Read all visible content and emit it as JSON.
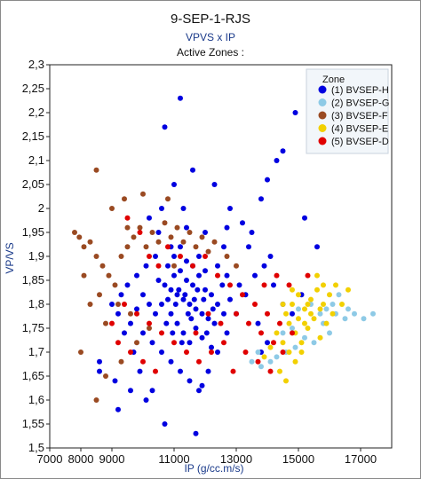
{
  "chart_data": {
    "type": "scatter",
    "title": "9-SEP-1-RJS",
    "subtitle": "VPVS x IP",
    "subtitle2": "Active Zones :",
    "xlabel": "IP (g/cc.m/s)",
    "ylabel": "VP/VS",
    "xlim": [
      7000,
      18000
    ],
    "ylim": [
      1.5,
      2.3
    ],
    "x_ticks": [
      "7000",
      "8000",
      "9000",
      "11000",
      "13000",
      "15000",
      "17000"
    ],
    "x_tick_values": [
      7000,
      8000,
      9000,
      11000,
      13000,
      15000,
      17000
    ],
    "y_ticks": [
      "1,5",
      "1,55",
      "1,6",
      "1,65",
      "1,7",
      "1,75",
      "1,8",
      "1,85",
      "1,9",
      "1,95",
      "2",
      "2,05",
      "2,1",
      "2,15",
      "2,2",
      "2,25",
      "2,3"
    ],
    "y_tick_values": [
      1.5,
      1.55,
      1.6,
      1.65,
      1.7,
      1.75,
      1.8,
      1.85,
      1.9,
      1.95,
      2.0,
      2.05,
      2.1,
      2.15,
      2.2,
      2.25,
      2.3
    ],
    "grid": false,
    "legend": {
      "title": "Zone",
      "placement": "top-right"
    },
    "series": [
      {
        "name": "(1) BVSEP-H",
        "color": "#0000e0",
        "points": [
          [
            11200,
            2.23
          ],
          [
            10700,
            2.17
          ],
          [
            14900,
            2.2
          ],
          [
            14500,
            2.12
          ],
          [
            14300,
            2.1
          ],
          [
            14000,
            2.06
          ],
          [
            13800,
            2.02
          ],
          [
            15600,
            1.92
          ],
          [
            15200,
            1.98
          ],
          [
            12300,
            2.05
          ],
          [
            11600,
            2.08
          ],
          [
            11000,
            2.05
          ],
          [
            10600,
            2.0
          ],
          [
            10200,
            1.98
          ],
          [
            12800,
            2.0
          ],
          [
            13200,
            1.97
          ],
          [
            13500,
            1.95
          ],
          [
            12600,
            1.92
          ],
          [
            12000,
            1.95
          ],
          [
            11400,
            1.96
          ],
          [
            10900,
            1.92
          ],
          [
            10400,
            1.9
          ],
          [
            10100,
            1.88
          ],
          [
            9800,
            1.86
          ],
          [
            9500,
            1.84
          ],
          [
            9300,
            1.82
          ],
          [
            9000,
            1.8
          ],
          [
            9200,
            1.78
          ],
          [
            9600,
            1.76
          ],
          [
            10000,
            1.74
          ],
          [
            10300,
            1.72
          ],
          [
            10600,
            1.7
          ],
          [
            10900,
            1.68
          ],
          [
            11200,
            1.66
          ],
          [
            11500,
            1.64
          ],
          [
            11800,
            1.62
          ],
          [
            12100,
            1.66
          ],
          [
            12400,
            1.7
          ],
          [
            12700,
            1.74
          ],
          [
            13000,
            1.78
          ],
          [
            13300,
            1.82
          ],
          [
            13600,
            1.86
          ],
          [
            13900,
            1.88
          ],
          [
            14200,
            1.84
          ],
          [
            14500,
            1.8
          ],
          [
            14800,
            1.78
          ],
          [
            15100,
            1.82
          ],
          [
            10500,
            1.85
          ],
          [
            10700,
            1.84
          ],
          [
            10900,
            1.83
          ],
          [
            11100,
            1.82
          ],
          [
            11300,
            1.81
          ],
          [
            11500,
            1.8
          ],
          [
            11700,
            1.79
          ],
          [
            11900,
            1.78
          ],
          [
            12100,
            1.77
          ],
          [
            12300,
            1.76
          ],
          [
            10600,
            1.8
          ],
          [
            10800,
            1.81
          ],
          [
            11000,
            1.86
          ],
          [
            11200,
            1.87
          ],
          [
            11400,
            1.85
          ],
          [
            11600,
            1.84
          ],
          [
            11800,
            1.86
          ],
          [
            12000,
            1.83
          ],
          [
            12200,
            1.82
          ],
          [
            12400,
            1.8
          ],
          [
            12600,
            1.78
          ],
          [
            12800,
            1.81
          ],
          [
            10400,
            1.78
          ],
          [
            10200,
            1.8
          ],
          [
            10000,
            1.82
          ],
          [
            9800,
            1.79
          ],
          [
            11100,
            1.76
          ],
          [
            11300,
            1.74
          ],
          [
            11500,
            1.72
          ],
          [
            11700,
            1.75
          ],
          [
            11900,
            1.73
          ],
          [
            12200,
            1.71
          ],
          [
            10800,
            1.88
          ],
          [
            11000,
            1.9
          ],
          [
            11200,
            1.92
          ],
          [
            11400,
            1.89
          ],
          [
            11600,
            1.88
          ],
          [
            11800,
            1.9
          ],
          [
            12000,
            1.87
          ],
          [
            12400,
            1.88
          ],
          [
            12700,
            1.86
          ],
          [
            13100,
            1.84
          ],
          [
            10100,
            1.6
          ],
          [
            10300,
            1.62
          ],
          [
            9200,
            1.58
          ],
          [
            10700,
            1.55
          ],
          [
            11700,
            1.53
          ],
          [
            11900,
            1.63
          ],
          [
            8600,
            1.68
          ],
          [
            8600,
            1.66
          ],
          [
            9100,
            1.64
          ],
          [
            9600,
            1.62
          ],
          [
            10500,
            1.95
          ],
          [
            11300,
            2.0
          ],
          [
            12700,
            1.96
          ],
          [
            13400,
            1.92
          ],
          [
            14100,
            1.9
          ],
          [
            10900,
            1.78
          ],
          [
            11050,
            1.8
          ],
          [
            11150,
            1.83
          ],
          [
            11350,
            1.82
          ],
          [
            11450,
            1.78
          ],
          [
            11650,
            1.81
          ],
          [
            11750,
            1.83
          ],
          [
            11950,
            1.81
          ],
          [
            10750,
            1.76
          ],
          [
            10950,
            1.74
          ],
          [
            11250,
            1.72
          ],
          [
            11550,
            1.77
          ],
          [
            12050,
            1.74
          ],
          [
            12250,
            1.79
          ],
          [
            12550,
            1.84
          ],
          [
            9400,
            1.74
          ],
          [
            9700,
            1.7
          ],
          [
            9900,
            1.66
          ],
          [
            13700,
            1.76
          ],
          [
            14000,
            1.72
          ],
          [
            13800,
            1.7
          ]
        ]
      },
      {
        "name": "(2) BVSEP-G",
        "color": "#8ecae6",
        "points": [
          [
            16200,
            1.78
          ],
          [
            16500,
            1.77
          ],
          [
            16800,
            1.78
          ],
          [
            17100,
            1.77
          ],
          [
            17400,
            1.78
          ],
          [
            15800,
            1.76
          ],
          [
            16000,
            1.74
          ],
          [
            15500,
            1.72
          ],
          [
            15200,
            1.73
          ],
          [
            14900,
            1.71
          ],
          [
            14600,
            1.7
          ],
          [
            14300,
            1.69
          ],
          [
            14100,
            1.68
          ],
          [
            13800,
            1.67
          ],
          [
            13500,
            1.68
          ],
          [
            15000,
            1.79
          ],
          [
            15400,
            1.8
          ],
          [
            15700,
            1.78
          ],
          [
            16100,
            1.8
          ],
          [
            16300,
            1.82
          ],
          [
            14800,
            1.75
          ],
          [
            14500,
            1.74
          ],
          [
            15900,
            1.79
          ],
          [
            16600,
            1.79
          ],
          [
            13700,
            1.7
          ]
        ]
      },
      {
        "name": "(3) BVSEP-F",
        "color": "#9a4a22",
        "points": [
          [
            8500,
            2.08
          ],
          [
            7800,
            1.95
          ],
          [
            7950,
            1.94
          ],
          [
            8100,
            1.92
          ],
          [
            8300,
            1.93
          ],
          [
            8500,
            1.9
          ],
          [
            8700,
            1.88
          ],
          [
            8900,
            1.86
          ],
          [
            9100,
            1.84
          ],
          [
            9300,
            1.9
          ],
          [
            9500,
            1.92
          ],
          [
            9700,
            1.94
          ],
          [
            9900,
            1.96
          ],
          [
            10100,
            1.92
          ],
          [
            10300,
            1.95
          ],
          [
            10500,
            1.93
          ],
          [
            10700,
            1.97
          ],
          [
            10900,
            1.94
          ],
          [
            11100,
            1.96
          ],
          [
            11300,
            1.93
          ],
          [
            11500,
            1.95
          ],
          [
            11700,
            1.92
          ],
          [
            11900,
            1.94
          ],
          [
            12100,
            1.91
          ],
          [
            12300,
            1.93
          ],
          [
            9000,
            2.0
          ],
          [
            9400,
            2.02
          ],
          [
            10000,
            2.03
          ],
          [
            8100,
            1.86
          ],
          [
            8300,
            1.8
          ],
          [
            8000,
            1.7
          ],
          [
            8500,
            1.6
          ],
          [
            8800,
            1.65
          ],
          [
            9300,
            1.68
          ],
          [
            9800,
            1.72
          ],
          [
            10200,
            1.75
          ],
          [
            9600,
            1.78
          ],
          [
            9200,
            1.8
          ],
          [
            8800,
            1.76
          ],
          [
            8600,
            1.82
          ],
          [
            9500,
            1.96
          ],
          [
            10800,
            2.02
          ],
          [
            12700,
            1.9
          ],
          [
            13000,
            1.88
          ],
          [
            11000,
            1.88
          ]
        ]
      },
      {
        "name": "(4) BVSEP-E",
        "color": "#f2d000",
        "points": [
          [
            14600,
            1.78
          ],
          [
            14800,
            1.8
          ],
          [
            15000,
            1.82
          ],
          [
            15200,
            1.79
          ],
          [
            15400,
            1.81
          ],
          [
            15600,
            1.83
          ],
          [
            15800,
            1.8
          ],
          [
            16000,
            1.82
          ],
          [
            16200,
            1.84
          ],
          [
            14700,
            1.76
          ],
          [
            14900,
            1.74
          ],
          [
            15100,
            1.72
          ],
          [
            15300,
            1.75
          ],
          [
            15500,
            1.77
          ],
          [
            15700,
            1.73
          ],
          [
            15900,
            1.76
          ],
          [
            16100,
            1.78
          ],
          [
            14500,
            1.72
          ],
          [
            14700,
            1.7
          ],
          [
            14900,
            1.68
          ],
          [
            15100,
            1.7
          ],
          [
            14300,
            1.74
          ],
          [
            14100,
            1.71
          ],
          [
            13900,
            1.69
          ],
          [
            14400,
            1.66
          ],
          [
            14600,
            1.64
          ],
          [
            15300,
            1.8
          ],
          [
            15600,
            1.86
          ],
          [
            15800,
            1.84
          ],
          [
            16400,
            1.8
          ],
          [
            16600,
            1.83
          ],
          [
            15000,
            1.77
          ],
          [
            15200,
            1.76
          ],
          [
            15400,
            1.78
          ],
          [
            14800,
            1.83
          ],
          [
            14500,
            1.8
          ],
          [
            15700,
            1.79
          ]
        ]
      },
      {
        "name": "(5) BVSEP-D",
        "color": "#e00000",
        "points": [
          [
            9500,
            1.98
          ],
          [
            9900,
            1.95
          ],
          [
            10200,
            1.9
          ],
          [
            10500,
            1.88
          ],
          [
            10800,
            1.92
          ],
          [
            11200,
            1.9
          ],
          [
            11600,
            1.88
          ],
          [
            12000,
            1.9
          ],
          [
            12400,
            1.86
          ],
          [
            12800,
            1.84
          ],
          [
            13200,
            1.82
          ],
          [
            13600,
            1.8
          ],
          [
            14000,
            1.78
          ],
          [
            14400,
            1.76
          ],
          [
            14800,
            1.74
          ],
          [
            13000,
            1.78
          ],
          [
            13400,
            1.76
          ],
          [
            13800,
            1.74
          ],
          [
            14200,
            1.72
          ],
          [
            12600,
            1.72
          ],
          [
            12200,
            1.7
          ],
          [
            11800,
            1.68
          ],
          [
            11400,
            1.7
          ],
          [
            11000,
            1.72
          ],
          [
            10600,
            1.74
          ],
          [
            10200,
            1.76
          ],
          [
            9800,
            1.78
          ],
          [
            9400,
            1.8
          ],
          [
            9000,
            1.76
          ],
          [
            9200,
            1.72
          ],
          [
            9600,
            1.7
          ],
          [
            10000,
            1.68
          ],
          [
            10400,
            1.66
          ],
          [
            12900,
            1.66
          ],
          [
            13300,
            1.7
          ],
          [
            13700,
            1.68
          ],
          [
            14100,
            1.66
          ],
          [
            14500,
            1.7
          ],
          [
            15300,
            1.86
          ],
          [
            14700,
            1.84
          ],
          [
            14300,
            1.86
          ],
          [
            13900,
            1.84
          ],
          [
            12500,
            1.76
          ],
          [
            12100,
            1.78
          ],
          [
            11700,
            1.74
          ]
        ]
      }
    ]
  }
}
